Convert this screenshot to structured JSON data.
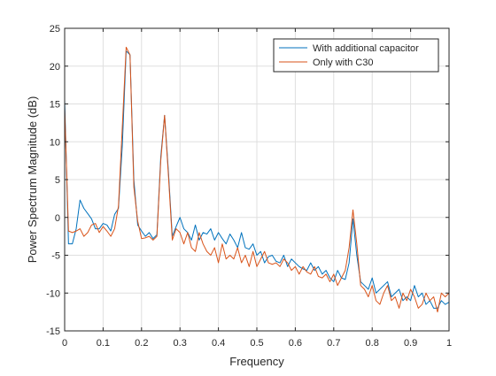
{
  "chart_data": {
    "type": "line",
    "title": "",
    "xlabel": "Frequency",
    "ylabel": "Power Spectrum Magnitude (dB)",
    "xlim": [
      0,
      1
    ],
    "ylim": [
      -15,
      25
    ],
    "xticks": [
      "0",
      "0.1",
      "0.2",
      "0.3",
      "0.4",
      "0.5",
      "0.6",
      "0.7",
      "0.8",
      "0.9",
      "1"
    ],
    "yticks": [
      "-15",
      "-10",
      "-5",
      "0",
      "5",
      "10",
      "15",
      "20",
      "25"
    ],
    "grid": true,
    "legend_position": "top-right",
    "x": [
      0.0,
      0.01,
      0.02,
      0.03,
      0.04,
      0.05,
      0.06,
      0.07,
      0.08,
      0.09,
      0.1,
      0.11,
      0.12,
      0.13,
      0.14,
      0.15,
      0.16,
      0.17,
      0.18,
      0.19,
      0.2,
      0.21,
      0.22,
      0.23,
      0.24,
      0.25,
      0.26,
      0.27,
      0.28,
      0.29,
      0.3,
      0.31,
      0.32,
      0.33,
      0.34,
      0.35,
      0.36,
      0.37,
      0.38,
      0.39,
      0.4,
      0.41,
      0.42,
      0.43,
      0.44,
      0.45,
      0.46,
      0.47,
      0.48,
      0.49,
      0.5,
      0.51,
      0.52,
      0.53,
      0.54,
      0.55,
      0.56,
      0.57,
      0.58,
      0.59,
      0.6,
      0.61,
      0.62,
      0.63,
      0.64,
      0.65,
      0.66,
      0.67,
      0.68,
      0.69,
      0.7,
      0.71,
      0.72,
      0.73,
      0.74,
      0.75,
      0.76,
      0.77,
      0.78,
      0.79,
      0.8,
      0.81,
      0.82,
      0.83,
      0.84,
      0.85,
      0.86,
      0.87,
      0.88,
      0.89,
      0.9,
      0.91,
      0.92,
      0.93,
      0.94,
      0.95,
      0.96,
      0.97,
      0.98,
      0.99,
      1.0
    ],
    "series": [
      {
        "name": "With additional capacitor",
        "color": "#0072BD",
        "values": [
          15.5,
          -3.5,
          -3.5,
          -1.5,
          2.3,
          1.2,
          0.5,
          -0.2,
          -1.5,
          -1.5,
          -0.8,
          -1.0,
          -1.8,
          0.4,
          1.2,
          9.5,
          22.0,
          21.5,
          5.0,
          -1.0,
          -1.8,
          -2.5,
          -2.0,
          -2.8,
          -2.3,
          8.0,
          13.5,
          6.0,
          -2.5,
          -1.2,
          0.0,
          -1.5,
          -2.0,
          -3.0,
          -1.0,
          -3.0,
          -2.0,
          -2.2,
          -1.5,
          -3.0,
          -2.0,
          -2.8,
          -3.5,
          -2.2,
          -3.0,
          -4.0,
          -2.0,
          -4.0,
          -4.2,
          -3.5,
          -5.0,
          -4.5,
          -6.0,
          -5.2,
          -5.0,
          -5.8,
          -6.0,
          -5.0,
          -6.5,
          -5.5,
          -6.0,
          -6.5,
          -6.8,
          -7.0,
          -6.0,
          -7.0,
          -6.5,
          -7.5,
          -7.0,
          -8.0,
          -8.5,
          -7.0,
          -8.0,
          -8.2,
          -6.0,
          -0.2,
          -5.0,
          -8.5,
          -9.0,
          -9.5,
          -8.0,
          -10.0,
          -9.5,
          -9.0,
          -8.5,
          -10.5,
          -10.0,
          -9.5,
          -11.0,
          -10.5,
          -11.0,
          -9.0,
          -10.5,
          -10.0,
          -11.5,
          -11.0,
          -12.0,
          -12.0,
          -11.0,
          -11.5,
          -11.2
        ]
      },
      {
        "name": "Only with C30",
        "color": "#D95319",
        "values": [
          14.5,
          -1.8,
          -2.0,
          -1.8,
          -1.5,
          -2.5,
          -2.0,
          -1.0,
          -0.8,
          -2.0,
          -1.2,
          -1.8,
          -2.5,
          -1.5,
          1.5,
          12.0,
          22.5,
          21.5,
          4.0,
          -0.5,
          -2.8,
          -2.7,
          -2.5,
          -3.0,
          -2.5,
          7.5,
          13.5,
          5.5,
          -3.0,
          -1.5,
          -2.0,
          -3.5,
          -2.0,
          -4.0,
          -4.5,
          -2.0,
          -3.5,
          -4.5,
          -5.0,
          -4.0,
          -6.0,
          -3.5,
          -5.5,
          -5.0,
          -5.5,
          -4.0,
          -6.0,
          -5.0,
          -6.5,
          -4.5,
          -6.5,
          -5.5,
          -4.5,
          -6.0,
          -6.2,
          -6.0,
          -6.5,
          -5.5,
          -6.0,
          -7.0,
          -6.5,
          -7.5,
          -6.5,
          -7.2,
          -7.5,
          -6.5,
          -7.8,
          -8.0,
          -7.5,
          -8.5,
          -7.5,
          -9.0,
          -8.0,
          -7.0,
          -4.0,
          1.0,
          -3.5,
          -9.0,
          -9.5,
          -10.5,
          -9.0,
          -11.0,
          -11.5,
          -10.0,
          -9.0,
          -11.0,
          -10.5,
          -12.0,
          -10.0,
          -11.0,
          -9.5,
          -10.5,
          -12.0,
          -11.5,
          -10.0,
          -11.0,
          -10.5,
          -12.5,
          -10.0,
          -10.5,
          -10.0
        ]
      }
    ]
  }
}
